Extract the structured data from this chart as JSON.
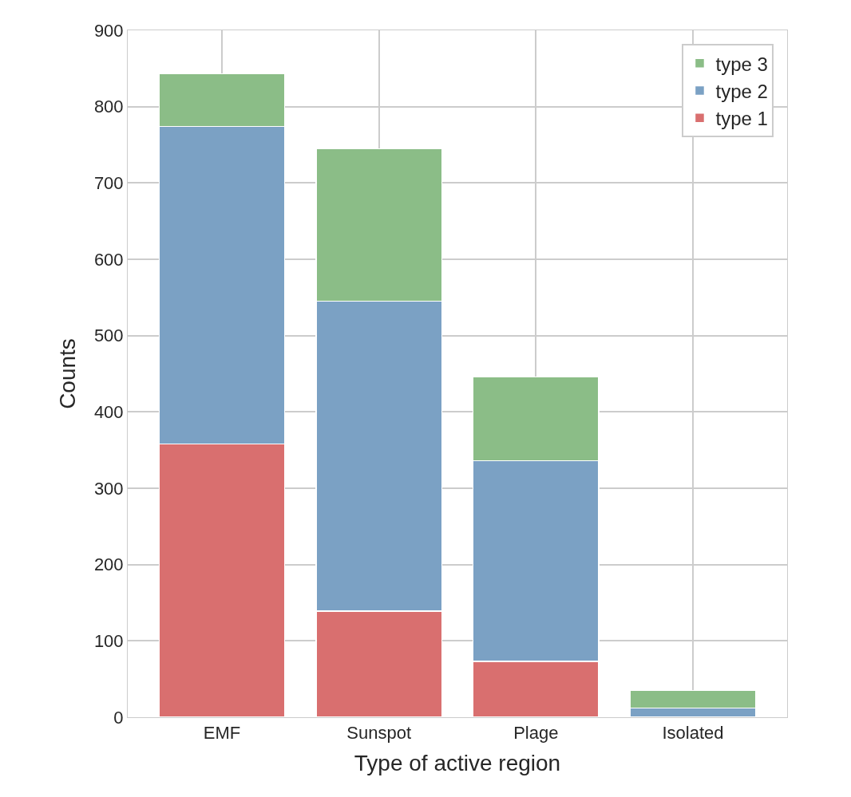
{
  "chart_data": {
    "type": "bar",
    "stacked": true,
    "xlabel": "Type of active region",
    "ylabel": "Counts",
    "categories": [
      "EMF",
      "Sunspot",
      "Plage",
      "Isolated"
    ],
    "series": [
      {
        "name": "type 1",
        "color": "#d96f6f",
        "values": [
          358,
          139,
          73,
          0
        ]
      },
      {
        "name": "type 2",
        "color": "#7ba1c4",
        "values": [
          416,
          406,
          263,
          12
        ]
      },
      {
        "name": "type 3",
        "color": "#8bbd87",
        "values": [
          69,
          200,
          110,
          23
        ]
      }
    ],
    "ylim": [
      0,
      900
    ],
    "yticks": [
      0,
      100,
      200,
      300,
      400,
      500,
      600,
      700,
      800,
      900
    ],
    "grid": true,
    "legend": "top right"
  }
}
